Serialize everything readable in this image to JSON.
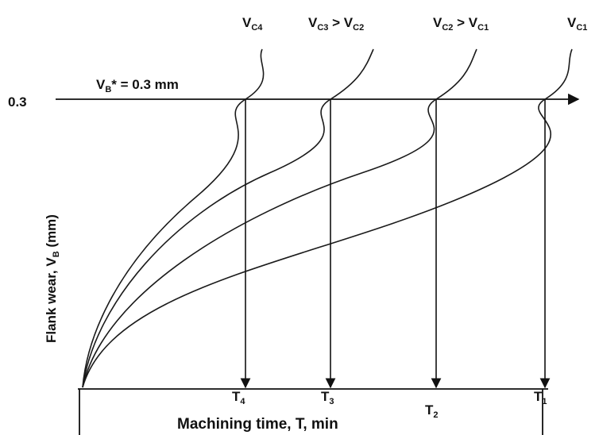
{
  "chart_data": {
    "type": "line",
    "xlabel": "Machining time, T, min",
    "ylabel": {
      "main": "Flank wear, V",
      "sub": "B",
      "unit": " (mm)"
    },
    "y_tick_label": "0.3",
    "criterion": {
      "main": "V",
      "sub": "B",
      "rest": "* = 0.3 mm",
      "value": 0.3
    },
    "x_tick_labels": [
      {
        "main": "T",
        "sub": "4"
      },
      {
        "main": "T",
        "sub": "3"
      },
      {
        "main": "T",
        "sub": "2"
      },
      {
        "main": "T",
        "sub": "1"
      }
    ],
    "series": [
      {
        "label_parts": [
          {
            "main": "V",
            "sub": "C4"
          }
        ],
        "lifetime_index": 0
      },
      {
        "label_parts": [
          {
            "main": "V",
            "sub": "C3"
          },
          {
            "text": " > "
          },
          {
            "main": "V",
            "sub": "C2"
          }
        ],
        "lifetime_index": 1
      },
      {
        "label_parts": [
          {
            "main": "V",
            "sub": "C2"
          },
          {
            "text": " > "
          },
          {
            "main": "V",
            "sub": "C1"
          }
        ],
        "lifetime_index": 2
      },
      {
        "label_parts": [
          {
            "main": "V",
            "sub": "C1"
          }
        ],
        "lifetime_index": 3
      }
    ],
    "x_units": "relative (no numeric ticks printed)",
    "grid": false,
    "legend": "labels at curve ends (top)"
  }
}
